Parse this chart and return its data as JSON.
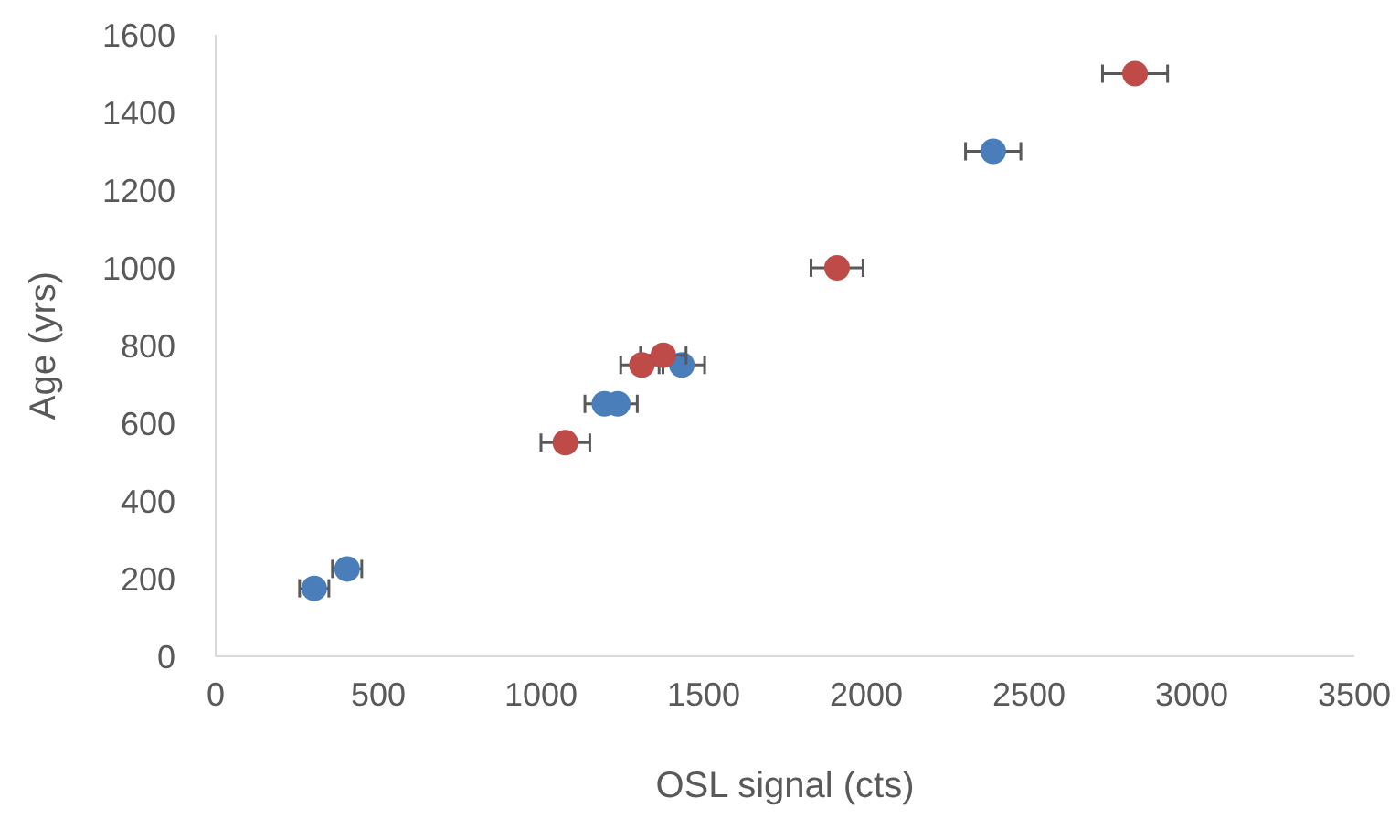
{
  "chart_data": {
    "type": "scatter",
    "xlabel": "OSL signal (cts)",
    "ylabel": "Age (yrs)",
    "xlim": [
      0,
      3500
    ],
    "xticks": [
      0,
      500,
      1000,
      1500,
      2000,
      2500,
      3000,
      3500
    ],
    "ylim": [
      0,
      1600
    ],
    "yticks": [
      0,
      200,
      400,
      600,
      800,
      1000,
      1200,
      1400,
      1600
    ],
    "marker": "circle",
    "grid": false,
    "series": [
      {
        "color": "#4a7ebb",
        "x": [
          303,
          404,
          1195,
          1236,
          1433,
          2390
        ],
        "values": [
          175,
          225,
          650,
          650,
          750,
          1300
        ],
        "xerrors": [
          45,
          45,
          60,
          60,
          70,
          85
        ]
      },
      {
        "color": "#be4b48",
        "x": [
          1075,
          1310,
          1376,
          1910,
          2826
        ],
        "values": [
          550,
          750,
          775,
          1000,
          1500
        ],
        "xerrors": [
          75,
          65,
          70,
          80,
          100
        ]
      }
    ]
  }
}
